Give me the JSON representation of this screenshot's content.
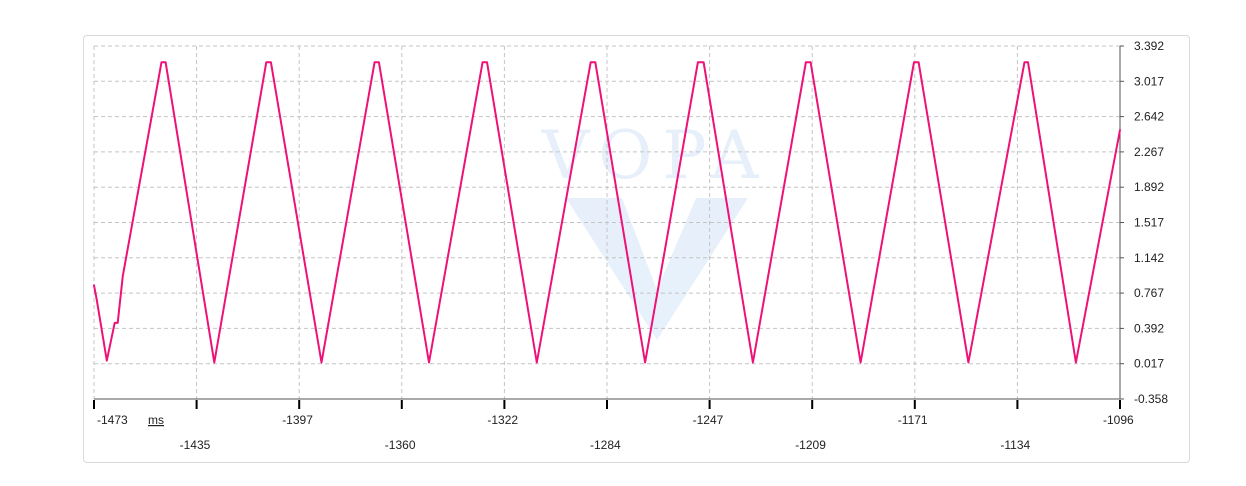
{
  "chart_data": {
    "type": "line",
    "title": "",
    "xlabel": "",
    "ylabel": "",
    "x_unit": "ms",
    "xlim": [
      -1473,
      -1096
    ],
    "ylim": [
      -0.358,
      3.392
    ],
    "x_ticks": [
      "-1473",
      "-1435",
      "-1397",
      "-1360",
      "-1322",
      "-1284",
      "-1247",
      "-1209",
      "-1171",
      "-1134",
      "-1096"
    ],
    "y_ticks": [
      "3.392",
      "3.017",
      "2.642",
      "2.267",
      "1.892",
      "1.517",
      "1.142",
      "0.767",
      "0.392",
      "0.017",
      "-0.358"
    ],
    "grid": true,
    "legend": "none",
    "series": [
      {
        "color": "#ee1177",
        "x": [
          -1473,
          -1472,
          -1468.3,
          -1465.4,
          -1464.3,
          -1462.4,
          -1448.2,
          -1446.7,
          -1428.8,
          -1409.7,
          -1408.0,
          -1389.4,
          -1369.9,
          -1368.3,
          -1349.9,
          -1330.2,
          -1328.6,
          -1310.3,
          -1290.5,
          -1288.8,
          -1270.5,
          -1251.1,
          -1249.0,
          -1230.9,
          -1211.4,
          -1209.7,
          -1191.3,
          -1171.7,
          -1170.0,
          -1151.7,
          -1131.1,
          -1129.8,
          -1112.2,
          -1096
        ],
        "y": [
          0.85,
          0.7,
          0.05,
          0.45,
          0.45,
          0.95,
          3.22,
          3.22,
          0.03,
          3.22,
          3.22,
          0.03,
          3.22,
          3.22,
          0.03,
          3.22,
          3.22,
          0.03,
          3.22,
          3.22,
          0.03,
          3.22,
          3.22,
          0.03,
          3.22,
          3.22,
          0.03,
          3.22,
          3.22,
          0.03,
          3.22,
          3.22,
          0.03,
          2.5
        ]
      }
    ]
  },
  "watermark": {
    "text": "VOPA",
    "color": "#e3eefa"
  }
}
